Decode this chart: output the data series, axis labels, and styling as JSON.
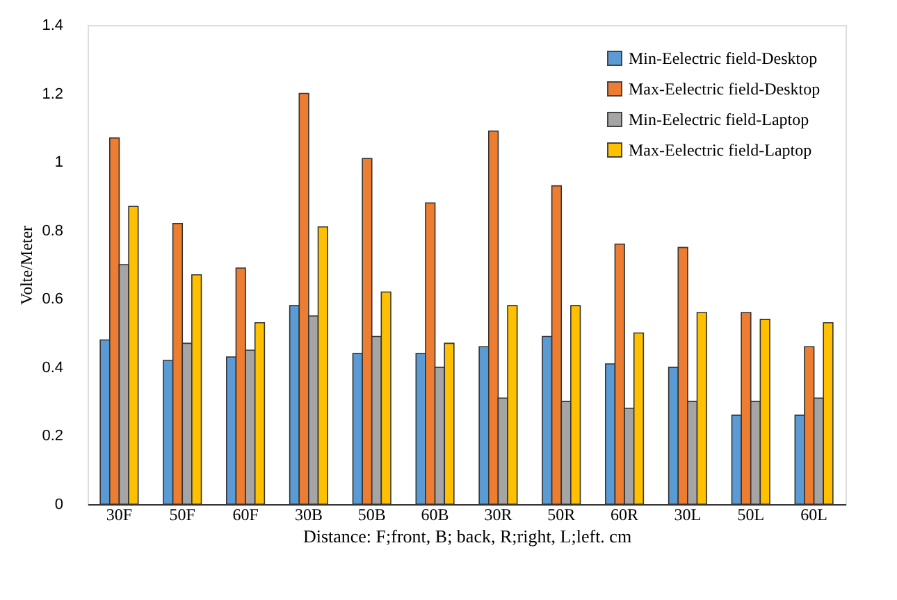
{
  "chart_data": {
    "type": "bar",
    "xlabel": "Distance: F;front, B;  back, R;right,  L;left.  cm",
    "ylabel": "Volte/Meter",
    "categories": [
      "30F",
      "50F",
      "60F",
      "30B",
      "50B",
      "60B",
      "30R",
      "50R",
      "60R",
      "30L",
      "50L",
      "60L"
    ],
    "series": [
      {
        "name": "Min-Eelectric field-Desktop",
        "color": "#5b9bd5",
        "values": [
          0.48,
          0.42,
          0.43,
          0.58,
          0.44,
          0.44,
          0.46,
          0.49,
          0.41,
          0.4,
          0.26,
          0.26
        ]
      },
      {
        "name": "Max-Eelectric field-Desktop",
        "color": "#ed7d31",
        "values": [
          1.07,
          0.82,
          0.69,
          1.2,
          1.01,
          0.88,
          1.09,
          0.93,
          0.76,
          0.75,
          0.56,
          0.46
        ]
      },
      {
        "name": "Min-Eelectric field-Laptop",
        "color": "#a5a5a5",
        "values": [
          0.7,
          0.47,
          0.45,
          0.55,
          0.49,
          0.4,
          0.31,
          0.3,
          0.28,
          0.3,
          0.3,
          0.31
        ]
      },
      {
        "name": "Max-Eelectric field-Laptop",
        "color": "#ffc000",
        "values": [
          0.87,
          0.67,
          0.53,
          0.81,
          0.62,
          0.47,
          0.58,
          0.58,
          0.5,
          0.56,
          0.54,
          0.53
        ]
      }
    ],
    "ylim": [
      0,
      1.4
    ],
    "yticks": [
      0,
      0.2,
      0.4,
      0.6,
      0.8,
      1,
      1.2,
      1.4
    ],
    "grid": false,
    "legend": "top right"
  }
}
